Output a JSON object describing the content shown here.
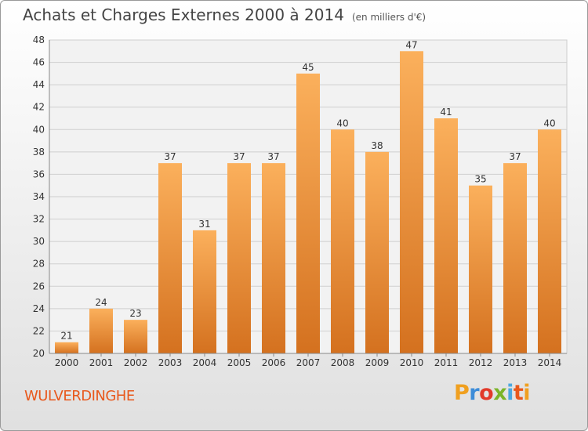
{
  "header": {
    "title": "Achats et Charges Externes 2000 à 2014",
    "subtitle": "(en milliers d'€)"
  },
  "footer": {
    "commune": "WULVERDINGHE",
    "logo": "Proxiti"
  },
  "colors": {
    "bar_light": "#fbb05c",
    "bar_dark": "#d4711f",
    "grid": "#cfcfcf",
    "commune_text": "#e8581c"
  },
  "chart_data": {
    "type": "bar",
    "title": "Achats et Charges Externes 2000 à 2014",
    "subtitle": "(en milliers d'€)",
    "categories": [
      "2000",
      "2001",
      "2002",
      "2003",
      "2004",
      "2005",
      "2006",
      "2007",
      "2008",
      "2009",
      "2010",
      "2011",
      "2012",
      "2013",
      "2014"
    ],
    "values": [
      21,
      24,
      23,
      37,
      31,
      37,
      37,
      45,
      40,
      38,
      47,
      41,
      35,
      37,
      40
    ],
    "ylim": [
      20,
      48
    ],
    "yticks": [
      20,
      22,
      24,
      26,
      28,
      30,
      32,
      34,
      36,
      38,
      40,
      42,
      44,
      46,
      48
    ],
    "grid": true,
    "data_labels": true
  }
}
